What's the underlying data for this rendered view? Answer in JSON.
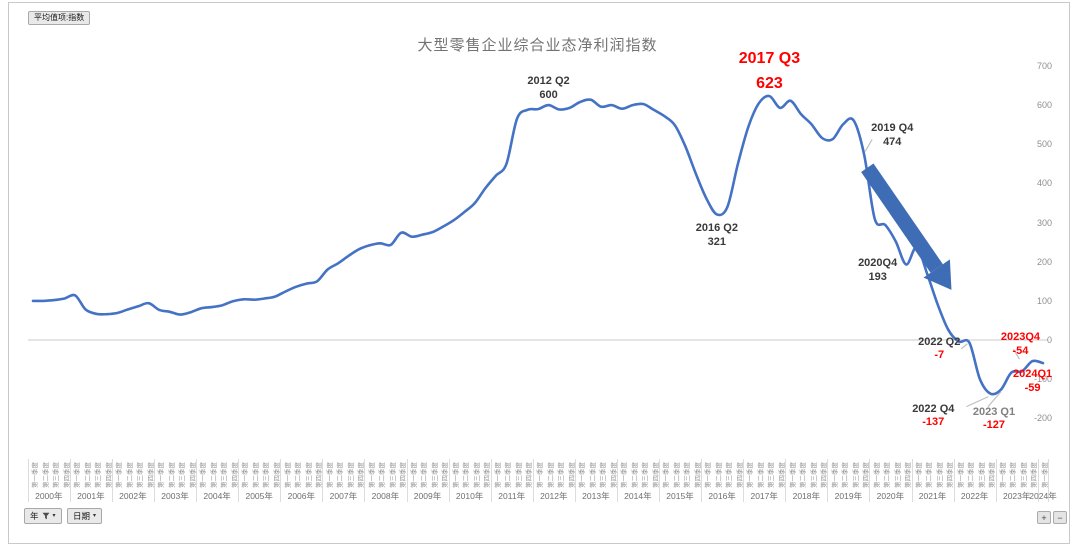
{
  "pivot_chart": {
    "field_button": "平均值项:指数",
    "axis_field_buttons": {
      "year": "年",
      "date": "日期"
    },
    "expand_button": "+",
    "collapse_button": "−"
  },
  "icons": {
    "dropdown_arrow": "▾",
    "filter_icon": "funnel"
  },
  "chart_data": {
    "type": "line",
    "title": "大型零售企业综合业态净利润指数",
    "xlabel": "",
    "ylabel": "",
    "ylim": [
      -200,
      700
    ],
    "y_ticks": [
      700,
      600,
      500,
      400,
      300,
      200,
      100,
      0,
      -100,
      -200
    ],
    "y_axis_side": "right",
    "grid": "zero-line-only",
    "legend": "none",
    "frequency": "quarterly",
    "x_start": "2000 Q1",
    "x_end": "2024 Q1",
    "line_color": "#4472C4",
    "arrow_color": "#3E6CB5",
    "leader_color": "#bfbfbf",
    "red": "#FF0000",
    "dark": "#3a3a3a",
    "gray": "#808080",
    "years": [
      "2000年",
      "2001年",
      "2002年",
      "2003年",
      "2004年",
      "2005年",
      "2006年",
      "2007年",
      "2008年",
      "2009年",
      "2010年",
      "2011年",
      "2012年",
      "2013年",
      "2014年",
      "2015年",
      "2016年",
      "2017年",
      "2018年",
      "2019年",
      "2020年",
      "2021年",
      "2022年",
      "2023年",
      "2024年"
    ],
    "quarter_labels": [
      "第一季度",
      "第二季度",
      "第三季度",
      "第四季度"
    ],
    "values": [
      100,
      100,
      102,
      106,
      114,
      78,
      67,
      66,
      69,
      78,
      86,
      94,
      77,
      72,
      65,
      71,
      81,
      84,
      89,
      99,
      104,
      103,
      106,
      111,
      124,
      136,
      144,
      150,
      180,
      196,
      215,
      232,
      242,
      247,
      243,
      274,
      264,
      269,
      276,
      290,
      306,
      327,
      350,
      388,
      420,
      450,
      565,
      588,
      590,
      600,
      589,
      593,
      608,
      614,
      596,
      600,
      591,
      600,
      603,
      588,
      572,
      549,
      495,
      425,
      362,
      321,
      340,
      450,
      545,
      605,
      623,
      593,
      611,
      577,
      551,
      516,
      513,
      551,
      561,
      474,
      310,
      294,
      252,
      193,
      237,
      168,
      90,
      26,
      -4,
      -7,
      -100,
      -137,
      -127,
      -83,
      -80,
      -54,
      -59
    ],
    "annotations": [
      {
        "label": "2012 Q2",
        "value": "600",
        "index": 49,
        "v": 600,
        "pos": "above",
        "label_color": "#3a3a3a",
        "value_color": "#3a3a3a",
        "leader": false
      },
      {
        "label": "2017 Q3",
        "value": "623",
        "index": 70,
        "v": 623,
        "pos": "above",
        "size": "large",
        "label_color": "#FF0000",
        "value_color": "#FF0000",
        "leader": false
      },
      {
        "label": "2016 Q2",
        "value": "321",
        "index": 65,
        "v": 321,
        "pos": "below",
        "label_color": "#3a3a3a",
        "value_color": "#3a3a3a",
        "leader": false
      },
      {
        "label": "2019 Q4",
        "value": "474",
        "index": 79,
        "v": 474,
        "pos": "above-right",
        "label_color": "#3a3a3a",
        "value_color": "#3a3a3a",
        "leader": true
      },
      {
        "label": "2020Q4",
        "value": "193",
        "index": 83,
        "v": 193,
        "pos": "left",
        "label_color": "#3a3a3a",
        "value_color": "#3a3a3a",
        "leader": false
      },
      {
        "label": "2022 Q2",
        "value": "-7",
        "index": 89,
        "v": -7,
        "pos": "left",
        "label_color": "#3a3a3a",
        "value_color": "#FF0000",
        "leader": true
      },
      {
        "label": "2022 Q4",
        "value": "-137",
        "index": 91,
        "v": -137,
        "pos": "below-left",
        "label_color": "#3a3a3a",
        "value_color": "#FF0000",
        "leader": true
      },
      {
        "label": "2023 Q1",
        "value": "-127",
        "index": 92,
        "v": -127,
        "pos": "below-right",
        "label_color": "#808080",
        "value_color": "#FF0000",
        "leader": true
      },
      {
        "label": "2023Q4",
        "value": "-54",
        "index": 95,
        "v": -54,
        "pos": "above",
        "dx": -12,
        "label_color": "#FF0000",
        "value_color": "#FF0000",
        "leader": true
      },
      {
        "label": "2024Q1",
        "value": "-59",
        "index": 96,
        "v": -59,
        "pos": "right-below",
        "label_color": "#FF0000",
        "value_color": "#FF0000",
        "leader": false
      }
    ],
    "arrow": {
      "from_index": 79.3,
      "from_v": 440,
      "to_index": 87.3,
      "to_v": 128
    }
  }
}
